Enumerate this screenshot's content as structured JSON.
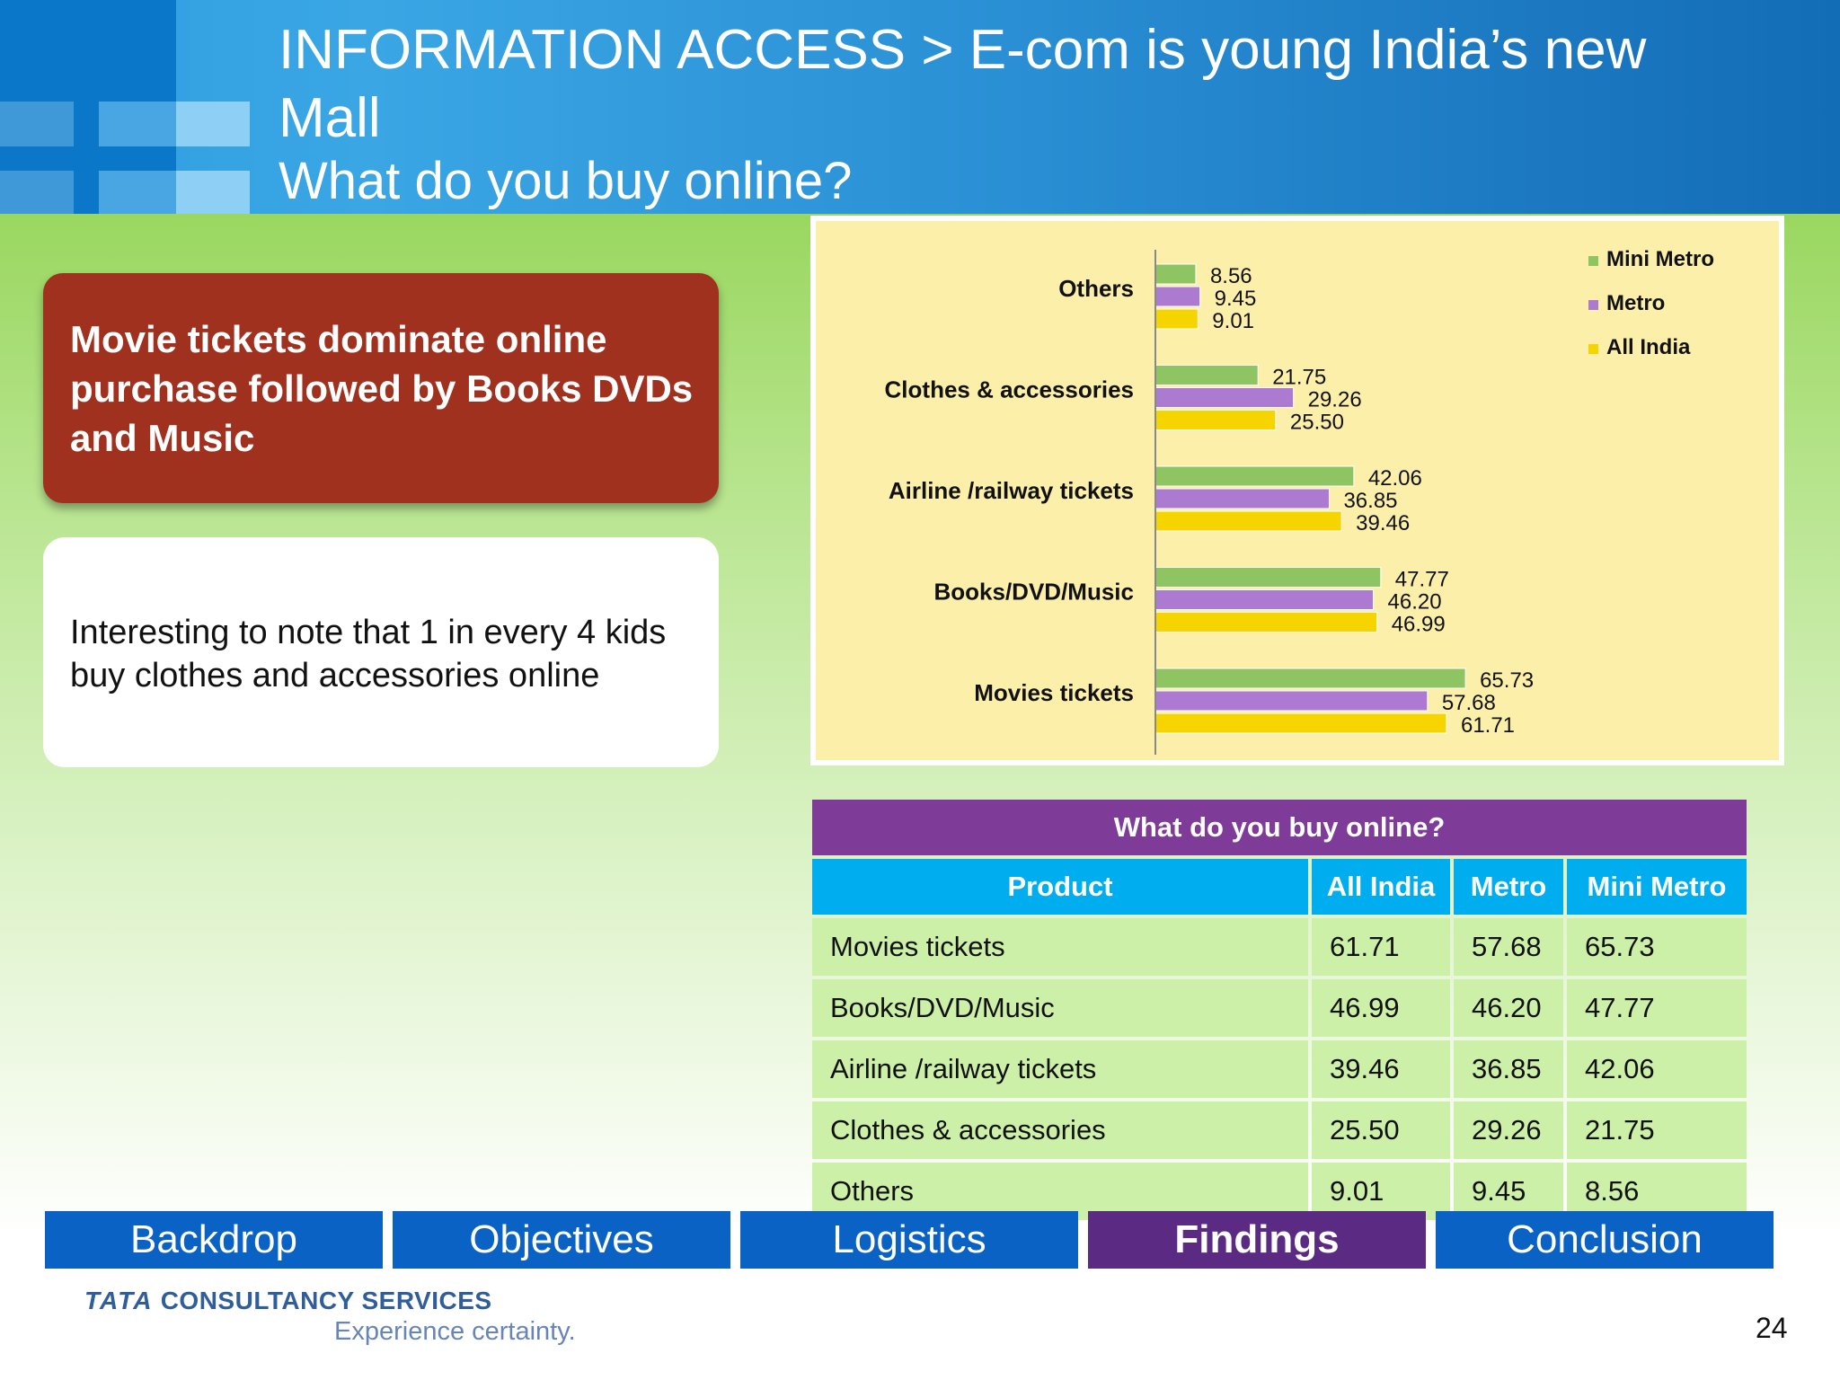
{
  "header": {
    "title": "INFORMATION ACCESS > E-com is young India’s new Mall",
    "subtitle": "What do you buy online?"
  },
  "callout": {
    "headline": "Movie tickets dominate online purchase followed by Books DVDs and Music",
    "note": "Interesting to note that 1 in every 4 kids buy clothes and accessories online"
  },
  "colors": {
    "mini_metro": "#8ec462",
    "metro": "#ad7ad1",
    "all_india": "#f5d400",
    "chart_bg": "#fcefaa",
    "table_title": "#7e3b97",
    "table_header": "#00adef",
    "table_row": "#cdf0a8",
    "nav_active": "#5b2a82",
    "nav_default": "#0a62c4"
  },
  "chart_data": {
    "type": "bar",
    "orientation": "horizontal",
    "categories": [
      "Others",
      "Clothes & accessories",
      "Airline /railway tickets",
      "Books/DVD/Music",
      "Movies tickets"
    ],
    "series": [
      {
        "name": "Mini Metro",
        "values": [
          8.56,
          21.75,
          42.06,
          47.77,
          65.73
        ]
      },
      {
        "name": "Metro",
        "values": [
          9.45,
          29.26,
          36.85,
          46.2,
          57.68
        ]
      },
      {
        "name": "All India",
        "values": [
          9.01,
          25.5,
          39.46,
          46.99,
          61.71
        ]
      }
    ],
    "value_labels": [
      [
        "8.56",
        "21.75",
        "42.06",
        "47.77",
        "65.73"
      ],
      [
        "9.45",
        "29.26",
        "36.85",
        "46.20",
        "57.68"
      ],
      [
        "9.01",
        "25.50",
        "39.46",
        "46.99",
        "61.71"
      ]
    ],
    "xlim": [
      0,
      100
    ],
    "legend_position": "top-right",
    "grid": false
  },
  "table": {
    "title": "What do you buy online?",
    "headers": [
      "Product",
      "All India",
      "Metro",
      "Mini Metro"
    ],
    "rows": [
      [
        "Movies tickets",
        "61.71",
        "57.68",
        "65.73"
      ],
      [
        "Books/DVD/Music",
        "46.99",
        "46.20",
        "47.77"
      ],
      [
        "Airline /railway tickets",
        "39.46",
        "36.85",
        "42.06"
      ],
      [
        "Clothes & accessories",
        "25.50",
        "29.26",
        "21.75"
      ],
      [
        "Others",
        "9.01",
        "9.45",
        "8.56"
      ]
    ]
  },
  "nav": {
    "items": [
      "Backdrop",
      "Objectives",
      "Logistics",
      "Findings",
      "Conclusion"
    ],
    "active": "Findings"
  },
  "footer": {
    "brand_tata": "TATA",
    "brand_rest": "CONSULTANCY SERVICES",
    "tagline": "Experience certainty.",
    "page_number": "24"
  }
}
